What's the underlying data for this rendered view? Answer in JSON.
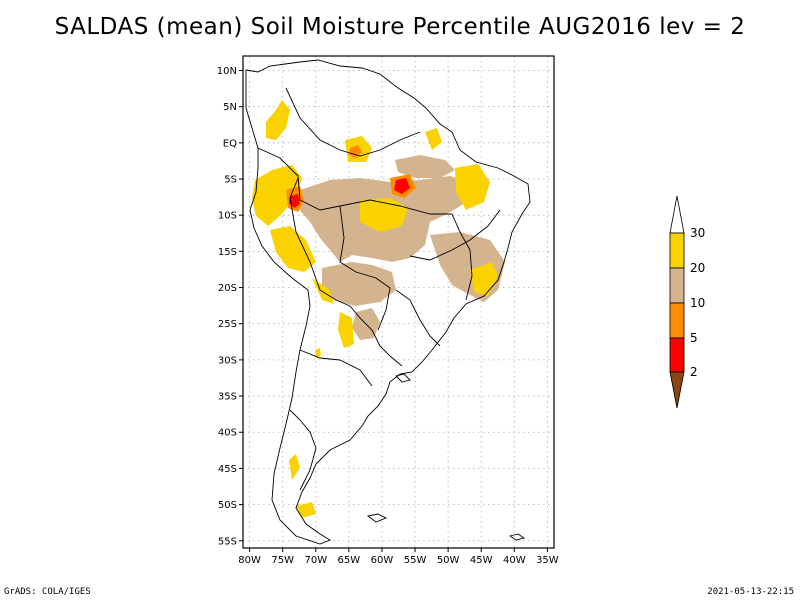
{
  "title": "SALDAS (mean) Soil Moisture Percentile AUG2016 lev = 2",
  "map": {
    "lat_labels": [
      "10N",
      "5N",
      "EQ",
      "5S",
      "10S",
      "15S",
      "20S",
      "25S",
      "30S",
      "35S",
      "40S",
      "45S",
      "50S",
      "55S"
    ],
    "lon_labels": [
      "80W",
      "75W",
      "70W",
      "65W",
      "60W",
      "55W",
      "50W",
      "45W",
      "40W",
      "35W"
    ],
    "lat_range": [
      -56,
      12
    ],
    "lon_range": [
      -81,
      -34
    ]
  },
  "legend": {
    "ticks": [
      "30",
      "20",
      "10",
      "5",
      "2"
    ],
    "colors": {
      "above": "#ffffff",
      "c20_30": "#f9d200",
      "c10_20": "#d4b38f",
      "c5_10": "#ff8c00",
      "c2_5": "#ff0000",
      "below": "#8b4513"
    }
  },
  "footer": {
    "left": "GrADS: COLA/IGES",
    "right": "2021-05-13-22:15"
  }
}
